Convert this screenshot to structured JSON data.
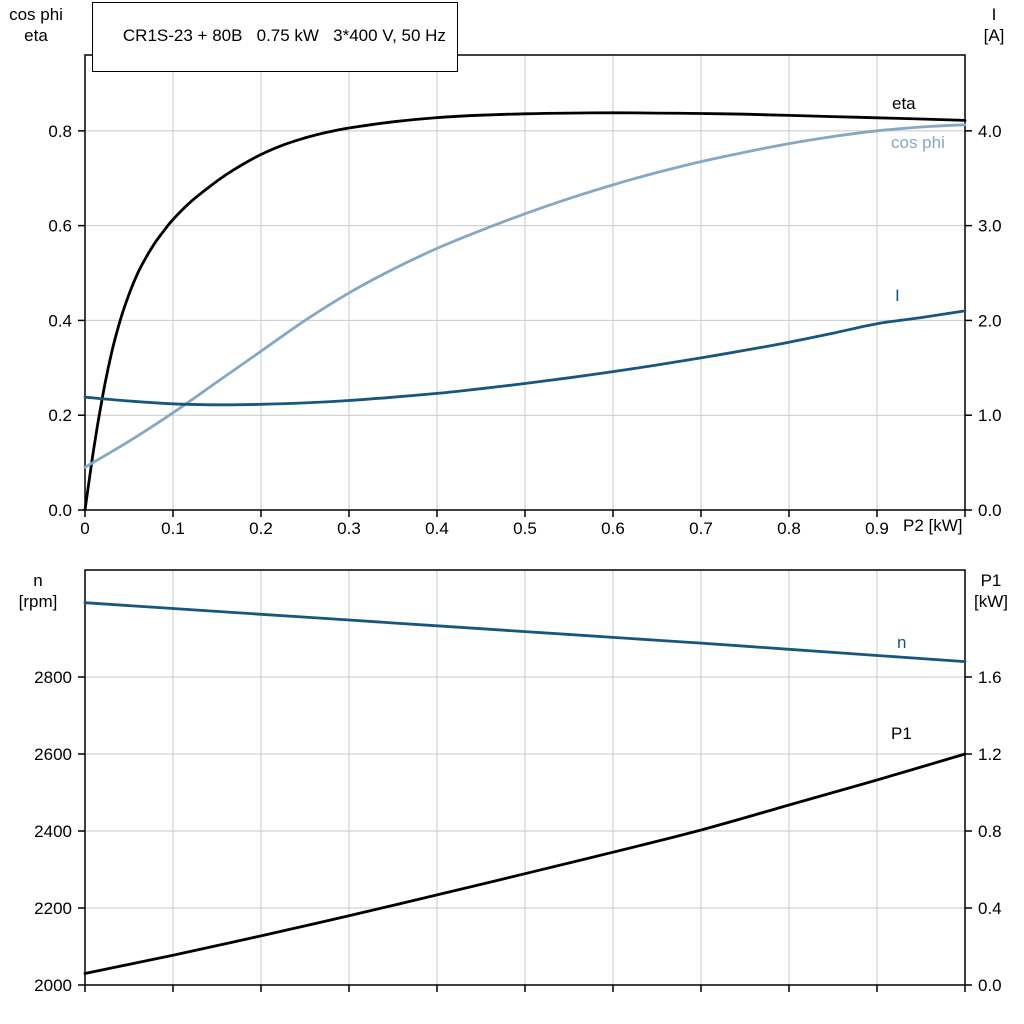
{
  "colors": {
    "grid": "#C9C9C9",
    "axis": "#000000",
    "black": "#000000",
    "dark_blue": "#17567E",
    "light_blue": "#85A9C5"
  },
  "chart_data": [
    {
      "type": "line",
      "title": "CR1S-23 + 80B   0.75 kW   3*400 V, 50 Hz",
      "x_label": "P2 [kW]",
      "x_range": [
        0,
        1.0
      ],
      "x_ticks": [
        0,
        0.1,
        0.2,
        0.3,
        0.4,
        0.5,
        0.6,
        0.7,
        0.8,
        0.9,
        1.0
      ],
      "x_tick_labels": [
        "0",
        "0.1",
        "0.2",
        "0.3",
        "0.4",
        "0.5",
        "0.6",
        "0.7",
        "0.8",
        "0.9",
        ""
      ],
      "grid": true,
      "legend_position": "curve-end-labels",
      "left_axis": {
        "label_lines": [
          "cos phi",
          "eta"
        ],
        "range": [
          0,
          0.96
        ],
        "ticks": [
          0,
          0.2,
          0.4,
          0.6,
          0.8
        ],
        "tick_labels": [
          "0.0",
          "0.2",
          "0.4",
          "0.6",
          "0.8"
        ]
      },
      "right_axis": {
        "label_lines": [
          "I",
          "[A]"
        ],
        "range": [
          0,
          4.8
        ],
        "ticks": [
          0,
          1,
          2,
          3,
          4
        ],
        "tick_labels": [
          "0.0",
          "1.0",
          "2.0",
          "3.0",
          "4.0"
        ]
      },
      "series": [
        {
          "name": "eta",
          "axis": "left",
          "color": "#000000",
          "points": [
            [
              0,
              0
            ],
            [
              0.01,
              0.13
            ],
            [
              0.02,
              0.24
            ],
            [
              0.03,
              0.33
            ],
            [
              0.04,
              0.4
            ],
            [
              0.05,
              0.455
            ],
            [
              0.06,
              0.5
            ],
            [
              0.07,
              0.535
            ],
            [
              0.08,
              0.565
            ],
            [
              0.09,
              0.59
            ],
            [
              0.1,
              0.613
            ],
            [
              0.12,
              0.65
            ],
            [
              0.14,
              0.68
            ],
            [
              0.16,
              0.707
            ],
            [
              0.18,
              0.73
            ],
            [
              0.2,
              0.75
            ],
            [
              0.225,
              0.77
            ],
            [
              0.25,
              0.785
            ],
            [
              0.275,
              0.797
            ],
            [
              0.3,
              0.806
            ],
            [
              0.35,
              0.819
            ],
            [
              0.4,
              0.828
            ],
            [
              0.45,
              0.833
            ],
            [
              0.5,
              0.836
            ],
            [
              0.55,
              0.8375
            ],
            [
              0.6,
              0.838
            ],
            [
              0.65,
              0.8375
            ],
            [
              0.7,
              0.8365
            ],
            [
              0.75,
              0.835
            ],
            [
              0.8,
              0.8325
            ],
            [
              0.85,
              0.83
            ],
            [
              0.9,
              0.8275
            ],
            [
              0.95,
              0.825
            ],
            [
              1.0,
              0.822
            ]
          ]
        },
        {
          "name": "cos phi",
          "axis": "left",
          "color": "#85A9C5",
          "points": [
            [
              0,
              0.09
            ],
            [
              0.05,
              0.145
            ],
            [
              0.1,
              0.205
            ],
            [
              0.15,
              0.27
            ],
            [
              0.2,
              0.335
            ],
            [
              0.25,
              0.4
            ],
            [
              0.3,
              0.458
            ],
            [
              0.35,
              0.508
            ],
            [
              0.4,
              0.552
            ],
            [
              0.45,
              0.59
            ],
            [
              0.5,
              0.625
            ],
            [
              0.55,
              0.657
            ],
            [
              0.6,
              0.686
            ],
            [
              0.65,
              0.712
            ],
            [
              0.7,
              0.735
            ],
            [
              0.75,
              0.755
            ],
            [
              0.8,
              0.773
            ],
            [
              0.85,
              0.788
            ],
            [
              0.9,
              0.8
            ],
            [
              0.95,
              0.808
            ],
            [
              1.0,
              0.813
            ]
          ]
        },
        {
          "name": "I",
          "axis": "right",
          "color": "#17567E",
          "points": [
            [
              0,
              1.19
            ],
            [
              0.05,
              1.15
            ],
            [
              0.1,
              1.12
            ],
            [
              0.15,
              1.11
            ],
            [
              0.2,
              1.115
            ],
            [
              0.25,
              1.13
            ],
            [
              0.3,
              1.155
            ],
            [
              0.35,
              1.19
            ],
            [
              0.4,
              1.23
            ],
            [
              0.45,
              1.28
            ],
            [
              0.5,
              1.335
            ],
            [
              0.55,
              1.395
            ],
            [
              0.6,
              1.46
            ],
            [
              0.65,
              1.53
            ],
            [
              0.7,
              1.605
            ],
            [
              0.75,
              1.685
            ],
            [
              0.8,
              1.77
            ],
            [
              0.85,
              1.865
            ],
            [
              0.9,
              1.965
            ],
            [
              0.95,
              2.03
            ],
            [
              1.0,
              2.1
            ]
          ]
        }
      ]
    },
    {
      "type": "line",
      "title": "",
      "x_label": "",
      "x_range": [
        0,
        1.0
      ],
      "x_ticks": [
        0,
        0.1,
        0.2,
        0.3,
        0.4,
        0.5,
        0.6,
        0.7,
        0.8,
        0.9,
        1.0
      ],
      "x_tick_labels": [],
      "grid": true,
      "legend_position": "curve-end-labels",
      "left_axis": {
        "label_lines": [
          "n",
          "[rpm]"
        ],
        "range": [
          2000,
          3078
        ],
        "ticks": [
          2000,
          2200,
          2400,
          2600,
          2800
        ],
        "tick_labels": [
          "2000",
          "2200",
          "2400",
          "2600",
          "2800"
        ]
      },
      "right_axis": {
        "label_lines": [
          "P1",
          "[kW]"
        ],
        "range": [
          0,
          2.156
        ],
        "ticks": [
          0,
          0.4,
          0.8,
          1.2,
          1.6
        ],
        "tick_labels": [
          "0.0",
          "0.4",
          "0.8",
          "1.2",
          "1.6"
        ]
      },
      "series": [
        {
          "name": "n",
          "axis": "left",
          "color": "#17567E",
          "points": [
            [
              0,
              2993
            ],
            [
              0.1,
              2978
            ],
            [
              0.2,
              2963
            ],
            [
              0.3,
              2948
            ],
            [
              0.4,
              2933
            ],
            [
              0.5,
              2918
            ],
            [
              0.6,
              2903
            ],
            [
              0.7,
              2888
            ],
            [
              0.8,
              2872
            ],
            [
              0.9,
              2856
            ],
            [
              1.0,
              2840
            ]
          ]
        },
        {
          "name": "P1",
          "axis": "right",
          "color": "#000000",
          "points": [
            [
              0,
              0.06
            ],
            [
              0.1,
              0.155
            ],
            [
              0.2,
              0.255
            ],
            [
              0.3,
              0.36
            ],
            [
              0.4,
              0.468
            ],
            [
              0.5,
              0.578
            ],
            [
              0.6,
              0.69
            ],
            [
              0.7,
              0.805
            ],
            [
              0.8,
              0.935
            ],
            [
              0.9,
              1.065
            ],
            [
              1.0,
              1.2
            ]
          ]
        }
      ]
    }
  ]
}
